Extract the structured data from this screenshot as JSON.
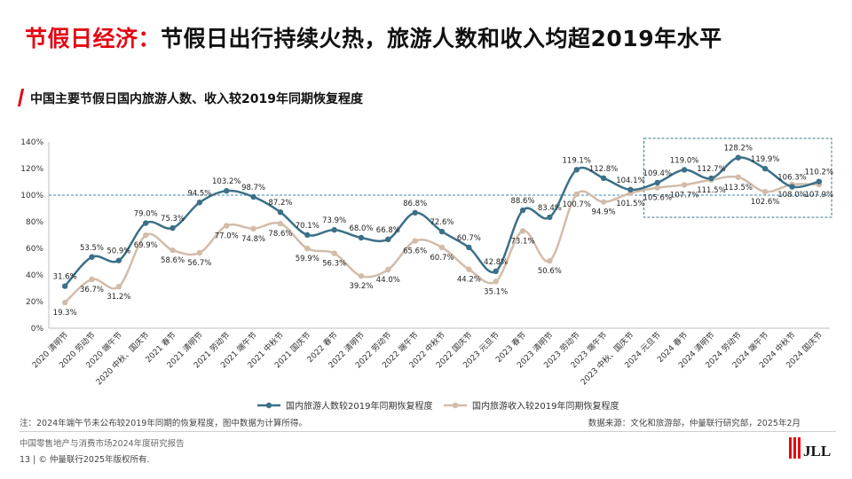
{
  "header": {
    "title_red": "节假日经济：",
    "title_black": "节假日出行持续火热，旅游人数和收入均超2019年水平",
    "subtitle": "中国主要节假日国内旅游人数、收入较2019年同期恢复程度"
  },
  "footer": {
    "note": "注：2024年端午节未公布较2019年同期的恢复程度，图中数据为计算所得。",
    "source": "数据来源：文化和旅游部，仲量联行研究部，2025年2月",
    "report": "中国零售地产与消费市场2024年度研究报告",
    "page": "13",
    "copyright": "|  © 仲量联行2025年版权所有.",
    "logo_text": "JLL"
  },
  "chart_data": {
    "type": "line",
    "categories": [
      "2020 清明节",
      "2020 劳动节",
      "2020 端午节",
      "2020 中秋、国庆节",
      "2021 春节",
      "2021 清明节",
      "2021 劳动节",
      "2021 端午节",
      "2021 中秋节",
      "2021 国庆节",
      "2022 春节",
      "2022 清明节",
      "2022 劳动节",
      "2022 端午节",
      "2022 中秋节",
      "2022 国庆节",
      "2023 元旦节",
      "2023 春节",
      "2023 清明节",
      "2023 劳动节",
      "2023 端午节",
      "2023 中秋、国庆节",
      "2024 元旦节",
      "2024 春节",
      "2024 清明节",
      "2024 劳动节",
      "2024 端午节",
      "2024 中秋节",
      "2024 国庆节"
    ],
    "series": [
      {
        "name": "国内旅游人数较2019年同期恢复程度",
        "color": "#3b7088",
        "values": [
          31.6,
          53.5,
          50.9,
          79.0,
          75.3,
          94.5,
          103.2,
          98.7,
          87.2,
          70.1,
          73.9,
          68.0,
          66.8,
          86.8,
          72.6,
          60.7,
          42.8,
          88.6,
          83.4,
          119.1,
          112.8,
          104.1,
          109.4,
          119.0,
          112.7,
          128.2,
          119.9,
          106.3,
          110.2
        ],
        "labels": [
          "31.6%",
          "53.5%",
          "50.9%",
          "79.0%",
          "75.3%",
          "94.5%",
          "103.2%",
          "98.7%",
          "87.2%",
          "70.1%",
          "73.9%",
          "68.0%",
          "66.8%",
          "86.8%",
          "72.6%",
          "60.7%",
          "42.8%",
          "88.6%",
          "83.4%",
          "119.1%",
          "112.8%",
          "104.1%",
          "109.4%",
          "119.0%",
          "112.7%",
          "128.2%",
          "119.9%",
          "106.3%",
          "110.2%"
        ]
      },
      {
        "name": "国内旅游收入较2019年同期恢复程度",
        "color": "#d2bca9",
        "values": [
          19.3,
          36.7,
          31.2,
          69.9,
          58.6,
          56.7,
          77.0,
          74.8,
          78.6,
          59.9,
          56.3,
          39.2,
          44.0,
          65.6,
          60.7,
          44.2,
          35.1,
          73.1,
          50.6,
          100.7,
          94.9,
          101.5,
          105.6,
          107.7,
          111.5,
          113.5,
          102.6,
          108.0,
          107.9
        ],
        "labels": [
          "19.3%",
          "36.7%",
          "31.2%",
          "69.9%",
          "58.6%",
          "56.7%",
          "77.0%",
          "74.8%",
          "78.6%",
          "59.9%",
          "56.3%",
          "39.2%",
          "44.0%",
          "65.6%",
          "60.7%",
          "44.2%",
          "35.1%",
          "73.1%",
          "50.6%",
          "100.7%",
          "94.9%",
          "101.5%",
          "105.6%",
          "107.7%",
          "111.5%",
          "113.5%",
          "102.6%",
          "108.0%",
          "107.9%"
        ]
      }
    ],
    "y_ticks": [
      "0%",
      "20%",
      "40%",
      "60%",
      "80%",
      "100%",
      "120%",
      "140%"
    ],
    "ylim": [
      0,
      140
    ],
    "reference_line": 100,
    "highlight_from_category": "2024 元旦节",
    "legend_position": "bottom",
    "grid": false
  }
}
